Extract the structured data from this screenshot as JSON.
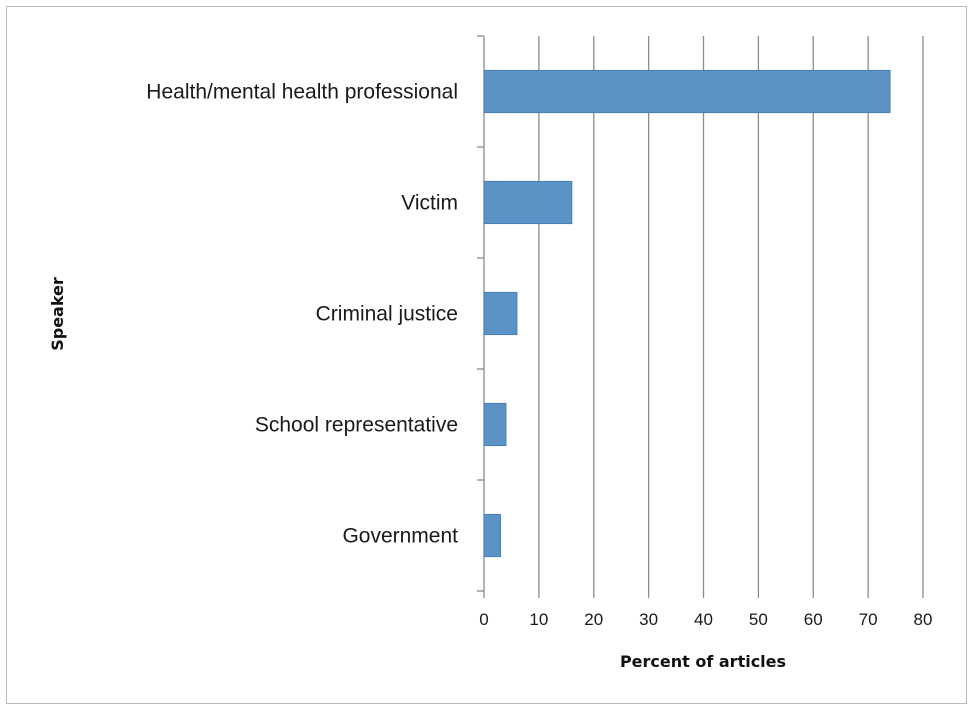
{
  "chart_data": {
    "type": "bar",
    "orientation": "horizontal",
    "categories": [
      "Health/mental health professional",
      "Victim",
      "Criminal justice",
      "School representative",
      "Government"
    ],
    "values": [
      74,
      16,
      6,
      4,
      3
    ],
    "xlabel": "Percent of articles",
    "ylabel": "Speaker",
    "xlim": [
      0,
      80
    ],
    "xticks": [
      "0",
      "10",
      "20",
      "30",
      "40",
      "50",
      "60",
      "70",
      "80"
    ],
    "grid": "vertical",
    "legend": "none",
    "bar_color": "#5b93c7"
  }
}
